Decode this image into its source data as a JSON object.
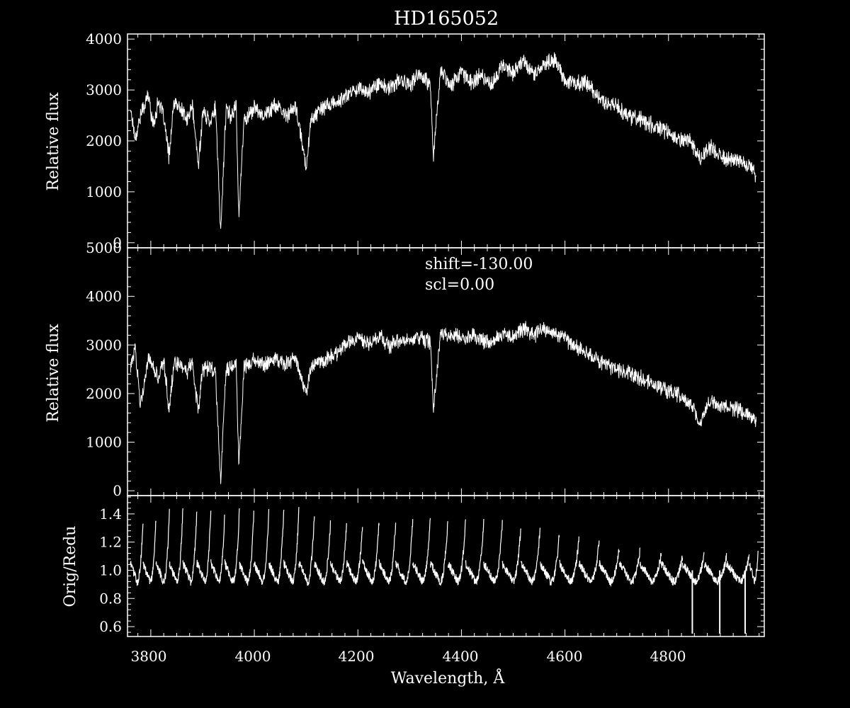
{
  "colors": {
    "background": "#000000",
    "foreground": "#ffffff"
  },
  "title": "HD165052",
  "x_axis": {
    "label": "Wavelength, Å",
    "ticks": [
      "3800",
      "4000",
      "4200",
      "4400",
      "4600",
      "4800"
    ]
  },
  "chart_data": [
    {
      "type": "line",
      "title": "HD165052",
      "xlabel": "",
      "ylabel": "Relative flux",
      "xlim": [
        3755,
        4985
      ],
      "ylim": [
        -100,
        4100
      ],
      "xticks": [
        3800,
        4000,
        4200,
        4400,
        4600,
        4800
      ],
      "yticks": [
        0,
        1000,
        2000,
        3000,
        4000
      ],
      "ytick_labels": [
        "0",
        "1000",
        "2000",
        "3000",
        "4000"
      ],
      "grid": false,
      "series": [
        {
          "x": [
            3760,
            3770,
            3780,
            3795,
            3805,
            3815,
            3825,
            3835,
            3845,
            3860,
            3870,
            3880,
            3892,
            3900,
            3915,
            3925,
            3935,
            3945,
            3955,
            3965,
            3970,
            3980,
            4000,
            4020,
            4040,
            4060,
            4080,
            4100,
            4110,
            4140,
            4160,
            4180,
            4200,
            4220,
            4240,
            4260,
            4280,
            4300,
            4320,
            4340,
            4346,
            4360,
            4380,
            4400,
            4420,
            4440,
            4460,
            4480,
            4500,
            4520,
            4540,
            4560,
            4580,
            4600,
            4620,
            4640,
            4660,
            4680,
            4700,
            4720,
            4740,
            4760,
            4780,
            4800,
            4820,
            4840,
            4861,
            4880,
            4900,
            4920,
            4940,
            4960,
            4970
          ],
          "y": [
            2700,
            2050,
            2500,
            2900,
            2300,
            2800,
            2450,
            1700,
            2750,
            2600,
            2400,
            2700,
            1500,
            2550,
            2400,
            2650,
            200,
            2600,
            2500,
            2700,
            500,
            2400,
            2650,
            2500,
            2700,
            2500,
            2650,
            1500,
            2450,
            2700,
            2750,
            2900,
            3050,
            2950,
            3150,
            3000,
            3200,
            3100,
            3300,
            3100,
            1700,
            3400,
            3100,
            3350,
            3150,
            3300,
            3100,
            3500,
            3350,
            3600,
            3300,
            3500,
            3600,
            3200,
            3100,
            3150,
            2900,
            2750,
            2700,
            2500,
            2450,
            2350,
            2250,
            2150,
            2000,
            2050,
            1650,
            1900,
            1700,
            1650,
            1600,
            1450,
            1300
          ]
        }
      ]
    },
    {
      "type": "line",
      "xlabel": "",
      "ylabel": "Relative flux",
      "xlim": [
        3755,
        4985
      ],
      "ylim": [
        -100,
        5000
      ],
      "xticks": [
        3800,
        4000,
        4200,
        4400,
        4600,
        4800
      ],
      "yticks": [
        0,
        1000,
        2000,
        3000,
        4000,
        5000
      ],
      "ytick_labels": [
        "0",
        "1000",
        "2000",
        "3000",
        "4000",
        "5000"
      ],
      "grid": false,
      "annotations": [
        "shift=-130.00",
        "scl=0.00"
      ],
      "series": [
        {
          "x": [
            3760,
            3770,
            3780,
            3795,
            3805,
            3815,
            3825,
            3835,
            3845,
            3860,
            3870,
            3880,
            3892,
            3900,
            3915,
            3925,
            3935,
            3945,
            3955,
            3965,
            3970,
            3980,
            4000,
            4020,
            4040,
            4060,
            4080,
            4100,
            4110,
            4140,
            4160,
            4180,
            4200,
            4220,
            4240,
            4260,
            4280,
            4300,
            4320,
            4340,
            4346,
            4360,
            4380,
            4400,
            4420,
            4440,
            4460,
            4480,
            4500,
            4520,
            4540,
            4560,
            4580,
            4600,
            4620,
            4640,
            4660,
            4680,
            4700,
            4720,
            4740,
            4760,
            4780,
            4800,
            4820,
            4840,
            4861,
            4880,
            4900,
            4920,
            4940,
            4960,
            4970
          ],
          "y": [
            2500,
            2900,
            1800,
            2700,
            2500,
            2300,
            2700,
            1700,
            2600,
            2550,
            2450,
            2650,
            1600,
            2500,
            2550,
            2400,
            200,
            2500,
            2550,
            2600,
            500,
            2550,
            2700,
            2600,
            2750,
            2600,
            2700,
            2000,
            2550,
            2700,
            2850,
            3050,
            3150,
            3000,
            3200,
            3000,
            3050,
            3100,
            3150,
            3050,
            1650,
            3250,
            3200,
            3150,
            3200,
            3100,
            3050,
            3250,
            3150,
            3350,
            3200,
            3350,
            3250,
            3150,
            2950,
            2850,
            2700,
            2600,
            2500,
            2450,
            2350,
            2250,
            2150,
            2050,
            1950,
            1850,
            1400,
            1850,
            1750,
            1700,
            1650,
            1550,
            1450
          ]
        }
      ]
    },
    {
      "type": "line",
      "xlabel": "Wavelength, Å",
      "ylabel": "Orig/Redu",
      "xlim": [
        3755,
        4985
      ],
      "ylim": [
        0.53,
        1.53
      ],
      "xticks": [
        3800,
        4000,
        4200,
        4400,
        4600,
        4800
      ],
      "yticks": [
        0.6,
        0.8,
        1.0,
        1.2,
        1.4
      ],
      "ytick_labels": [
        "0.6",
        "0.8",
        "1.0",
        "1.2",
        "1.4"
      ],
      "grid": false,
      "series": [
        {
          "name": "",
          "order_starts": [
            3760,
            3785,
            3810,
            3836,
            3862,
            3889,
            3916,
            3943,
            3971,
            3999,
            4028,
            4057,
            4086,
            4116,
            4147,
            4178,
            4209,
            4241,
            4273,
            4306,
            4340,
            4374,
            4408,
            4443,
            4479,
            4515,
            4552,
            4589,
            4627,
            4666,
            4705,
            4745,
            4786,
            4827,
            4869,
            4912,
            4956
          ],
          "order_peaks": [
            1.35,
            1.37,
            1.42,
            1.45,
            1.43,
            1.42,
            1.41,
            1.42,
            1.4,
            1.42,
            1.43,
            1.43,
            1.4,
            1.33,
            1.31,
            1.33,
            1.35,
            1.34,
            1.36,
            1.38,
            1.37,
            1.35,
            1.34,
            1.33,
            1.31,
            1.3,
            1.25,
            1.22,
            1.2,
            1.17,
            1.14,
            1.12,
            1.1,
            1.12,
            1.1,
            1.11,
            1.12
          ],
          "order_min": 0.92,
          "dips": [
            {
              "x": 4846,
              "y": 0.55
            },
            {
              "x": 4899,
              "y": 0.55
            },
            {
              "x": 4948,
              "y": 0.55
            }
          ]
        }
      ]
    }
  ]
}
